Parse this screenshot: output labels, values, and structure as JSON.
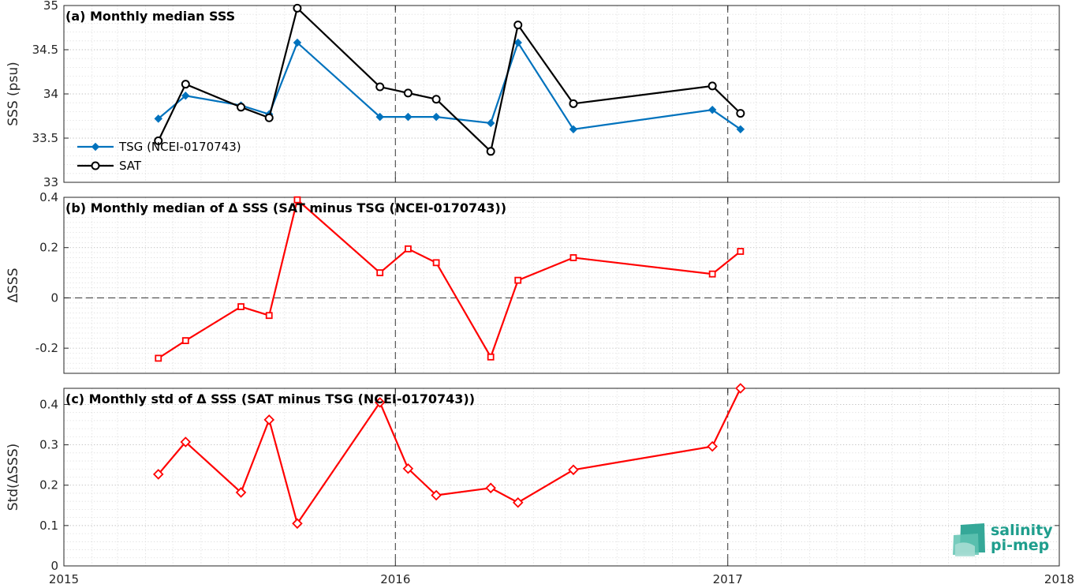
{
  "chart_data": [
    {
      "type": "line",
      "title": "(a) Monthly median SSS",
      "xlabel": "",
      "ylabel": "SSS (psu)",
      "xlim": [
        "2015-01-01",
        "2018-01-01"
      ],
      "ylim": [
        33,
        35
      ],
      "yticks": [
        "33",
        "33.5",
        "34",
        "34.5",
        "35"
      ],
      "grid": true,
      "legend": "bottom-left",
      "x": [
        "2015-04-15",
        "2015-05-15",
        "2015-07-15",
        "2015-08-15",
        "2015-09-15",
        "2015-12-15",
        "2016-01-15",
        "2016-02-15",
        "2016-04-15",
        "2016-05-15",
        "2016-07-15",
        "2016-12-15",
        "2017-01-15"
      ],
      "series": [
        {
          "name": "TSG (NCEI-0170743)",
          "color": "#0072bd",
          "marker": "diamond",
          "values": [
            33.72,
            33.98,
            33.87,
            33.77,
            34.58,
            33.74,
            33.74,
            33.74,
            33.67,
            34.58,
            33.6,
            33.82,
            33.6
          ]
        },
        {
          "name": "SAT",
          "color": "#000000",
          "marker": "circle",
          "values": [
            33.47,
            34.11,
            33.85,
            33.73,
            34.97,
            34.08,
            34.01,
            33.94,
            33.35,
            34.78,
            33.89,
            34.09,
            33.78
          ]
        }
      ]
    },
    {
      "type": "line",
      "title": "(b) Monthly median of Δ SSS (SAT minus TSG (NCEI-0170743))",
      "xlabel": "",
      "ylabel": "ΔSSS",
      "xlim": [
        "2015-01-01",
        "2018-01-01"
      ],
      "ylim": [
        -0.3,
        0.4
      ],
      "yticks": [
        "-0.2",
        "0",
        "0.2",
        "0.4"
      ],
      "grid": true,
      "x": [
        "2015-04-15",
        "2015-05-15",
        "2015-07-15",
        "2015-08-15",
        "2015-09-15",
        "2015-12-15",
        "2016-01-15",
        "2016-02-15",
        "2016-04-15",
        "2016-05-15",
        "2016-07-15",
        "2016-12-15",
        "2017-01-15"
      ],
      "series": [
        {
          "color": "#ff0000",
          "marker": "square",
          "values": [
            -0.24,
            -0.17,
            -0.035,
            -0.07,
            0.39,
            0.1,
            0.195,
            0.14,
            -0.235,
            0.07,
            0.16,
            0.095,
            0.185
          ]
        }
      ]
    },
    {
      "type": "line",
      "title": "(c) Monthly std of Δ SSS (SAT minus TSG (NCEI-0170743))",
      "xlabel": "",
      "ylabel": "Std(ΔSSS)",
      "xlim": [
        "2015-01-01",
        "2018-01-01"
      ],
      "ylim": [
        0,
        0.44
      ],
      "yticks": [
        "0",
        "0.1",
        "0.2",
        "0.3",
        "0.4"
      ],
      "xticks": [
        "2015",
        "2016",
        "2017",
        "2018"
      ],
      "grid": true,
      "x": [
        "2015-04-15",
        "2015-05-15",
        "2015-07-15",
        "2015-08-15",
        "2015-09-15",
        "2015-12-15",
        "2016-01-15",
        "2016-02-15",
        "2016-04-15",
        "2016-05-15",
        "2016-07-15",
        "2016-12-15",
        "2017-01-15"
      ],
      "series": [
        {
          "color": "#ff0000",
          "marker": "diamond",
          "values": [
            0.227,
            0.307,
            0.182,
            0.362,
            0.105,
            0.405,
            0.241,
            0.175,
            0.193,
            0.157,
            0.238,
            0.296,
            0.44
          ]
        }
      ]
    }
  ],
  "logo": {
    "line1": "salinity",
    "line2": "pi-mep",
    "color": "#1f9e8d"
  }
}
